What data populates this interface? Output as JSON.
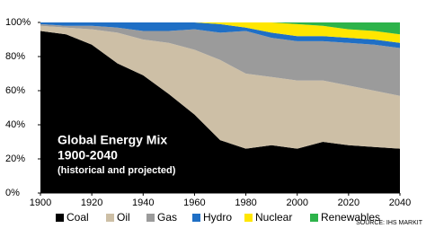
{
  "chart_data": {
    "type": "stacked-area",
    "title": "Global Energy Mix",
    "subtitle": "1900-2040",
    "annotation": "(historical and projected)",
    "source": "SOURCE: IHS MARKIT",
    "x": [
      1900,
      1910,
      1920,
      1930,
      1940,
      1950,
      1960,
      1970,
      1980,
      1990,
      2000,
      2010,
      2020,
      2030,
      2040
    ],
    "series": [
      {
        "name": "Coal",
        "color": "#000000",
        "values": [
          95,
          93,
          87,
          76,
          69,
          58,
          46,
          31,
          26,
          28,
          26,
          30,
          28,
          27,
          26
        ]
      },
      {
        "name": "Oil",
        "color": "#cdbfa6",
        "values": [
          3,
          4,
          9,
          18,
          21,
          30,
          38,
          47,
          44,
          40,
          40,
          36,
          35,
          33,
          31
        ]
      },
      {
        "name": "Gas",
        "color": "#9b9b9b",
        "values": [
          1,
          1,
          2,
          3,
          5,
          7,
          12,
          16,
          25,
          23,
          23,
          23,
          25,
          27,
          28
        ]
      },
      {
        "name": "Hydro",
        "color": "#1f6fc5",
        "values": [
          1,
          2,
          2,
          3,
          5,
          5,
          4,
          5,
          2,
          3,
          3,
          3,
          3,
          3,
          3
        ]
      },
      {
        "name": "Nuclear",
        "color": "#ffe600",
        "values": [
          0,
          0,
          0,
          0,
          0,
          0,
          0,
          1,
          3,
          6,
          7,
          6,
          5,
          5,
          5
        ]
      },
      {
        "name": "Renewables",
        "color": "#2db34a",
        "values": [
          0,
          0,
          0,
          0,
          0,
          0,
          0,
          0,
          0,
          0,
          1,
          2,
          4,
          5,
          7
        ]
      }
    ],
    "xlim": [
      1900,
      2040
    ],
    "xticks": [
      1900,
      1920,
      1940,
      1960,
      1980,
      2000,
      2020,
      2040
    ],
    "ylim": [
      0,
      100
    ],
    "yticks": [
      {
        "value": 0,
        "label": "0%"
      },
      {
        "value": 20,
        "label": "20%"
      },
      {
        "value": 40,
        "label": "40%"
      },
      {
        "value": 60,
        "label": "60%"
      },
      {
        "value": 80,
        "label": "80%"
      },
      {
        "value": 100,
        "label": "100%"
      }
    ]
  }
}
